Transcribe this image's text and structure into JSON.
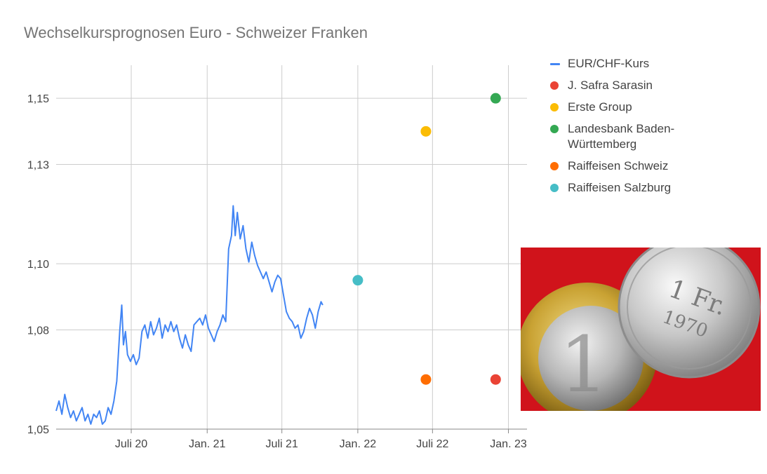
{
  "chart_data": {
    "type": "line",
    "title": "Wechselkursprognosen Euro - Schweizer Franken",
    "xlabel": "",
    "ylabel": "",
    "xlim": [
      "2020-01-01",
      "2023-02-15"
    ],
    "ylim": [
      1.05,
      1.16
    ],
    "x_ticks": [
      {
        "date": "2020-07-01",
        "label": "Juli 20"
      },
      {
        "date": "2021-01-01",
        "label": "Jan. 21"
      },
      {
        "date": "2021-07-01",
        "label": "Juli 21"
      },
      {
        "date": "2022-01-01",
        "label": "Jan. 22"
      },
      {
        "date": "2022-07-01",
        "label": "Juli 22"
      },
      {
        "date": "2023-01-01",
        "label": "Jan. 23"
      }
    ],
    "y_ticks": [
      {
        "value": 1.05,
        "label": "1,05"
      },
      {
        "value": 1.08,
        "label": "1,08"
      },
      {
        "value": 1.1,
        "label": "1,10"
      },
      {
        "value": 1.13,
        "label": "1,13"
      },
      {
        "value": 1.15,
        "label": "1,15"
      }
    ],
    "grid": true,
    "legend_position": "right",
    "series": [
      {
        "name": "EUR/CHF-Kurs",
        "type": "line",
        "color": "#4285f4",
        "points": [
          [
            "2020-01-01",
            1.0555
          ],
          [
            "2020-01-08",
            1.0585
          ],
          [
            "2020-01-15",
            1.0545
          ],
          [
            "2020-01-22",
            1.0605
          ],
          [
            "2020-01-29",
            1.0565
          ],
          [
            "2020-02-05",
            1.0535
          ],
          [
            "2020-02-12",
            1.0555
          ],
          [
            "2020-02-19",
            1.0525
          ],
          [
            "2020-02-26",
            1.0545
          ],
          [
            "2020-03-04",
            1.0565
          ],
          [
            "2020-03-11",
            1.0525
          ],
          [
            "2020-03-18",
            1.0545
          ],
          [
            "2020-03-25",
            1.0515
          ],
          [
            "2020-04-01",
            1.0545
          ],
          [
            "2020-04-08",
            1.0535
          ],
          [
            "2020-04-15",
            1.0555
          ],
          [
            "2020-04-22",
            1.0515
          ],
          [
            "2020-04-29",
            1.0525
          ],
          [
            "2020-05-06",
            1.0565
          ],
          [
            "2020-05-13",
            1.0545
          ],
          [
            "2020-05-20",
            1.0585
          ],
          [
            "2020-05-27",
            1.0645
          ],
          [
            "2020-06-03",
            1.0795
          ],
          [
            "2020-06-08",
            1.0875
          ],
          [
            "2020-06-12",
            1.0755
          ],
          [
            "2020-06-17",
            1.0795
          ],
          [
            "2020-06-22",
            1.0725
          ],
          [
            "2020-06-29",
            1.0705
          ],
          [
            "2020-07-06",
            1.0725
          ],
          [
            "2020-07-13",
            1.0695
          ],
          [
            "2020-07-20",
            1.0715
          ],
          [
            "2020-07-27",
            1.0795
          ],
          [
            "2020-08-03",
            1.0815
          ],
          [
            "2020-08-10",
            1.0775
          ],
          [
            "2020-08-17",
            1.0825
          ],
          [
            "2020-08-24",
            1.0785
          ],
          [
            "2020-08-31",
            1.0805
          ],
          [
            "2020-09-07",
            1.0835
          ],
          [
            "2020-09-14",
            1.0775
          ],
          [
            "2020-09-21",
            1.0815
          ],
          [
            "2020-09-28",
            1.0795
          ],
          [
            "2020-10-05",
            1.0825
          ],
          [
            "2020-10-12",
            1.0795
          ],
          [
            "2020-10-19",
            1.0815
          ],
          [
            "2020-10-26",
            1.0775
          ],
          [
            "2020-11-02",
            1.0745
          ],
          [
            "2020-11-09",
            1.0785
          ],
          [
            "2020-11-16",
            1.0755
          ],
          [
            "2020-11-23",
            1.0735
          ],
          [
            "2020-11-30",
            1.0815
          ],
          [
            "2020-12-07",
            1.0825
          ],
          [
            "2020-12-14",
            1.0835
          ],
          [
            "2020-12-21",
            1.0815
          ],
          [
            "2020-12-28",
            1.0845
          ],
          [
            "2021-01-04",
            1.0805
          ],
          [
            "2021-01-11",
            1.0785
          ],
          [
            "2021-01-18",
            1.0765
          ],
          [
            "2021-01-25",
            1.0795
          ],
          [
            "2021-02-01",
            1.0815
          ],
          [
            "2021-02-08",
            1.0845
          ],
          [
            "2021-02-15",
            1.0825
          ],
          [
            "2021-02-22",
            1.1045
          ],
          [
            "2021-03-01",
            1.1085
          ],
          [
            "2021-03-05",
            1.1175
          ],
          [
            "2021-03-10",
            1.1085
          ],
          [
            "2021-03-15",
            1.1155
          ],
          [
            "2021-03-22",
            1.1075
          ],
          [
            "2021-03-29",
            1.1115
          ],
          [
            "2021-04-05",
            1.1045
          ],
          [
            "2021-04-12",
            1.1005
          ],
          [
            "2021-04-19",
            1.1065
          ],
          [
            "2021-04-26",
            1.1025
          ],
          [
            "2021-05-03",
            1.0995
          ],
          [
            "2021-05-10",
            1.0975
          ],
          [
            "2021-05-17",
            1.0955
          ],
          [
            "2021-05-24",
            1.0975
          ],
          [
            "2021-05-31",
            1.0945
          ],
          [
            "2021-06-07",
            1.0915
          ],
          [
            "2021-06-14",
            1.0945
          ],
          [
            "2021-06-21",
            1.0965
          ],
          [
            "2021-06-28",
            1.0955
          ],
          [
            "2021-07-05",
            1.0905
          ],
          [
            "2021-07-12",
            1.0855
          ],
          [
            "2021-07-19",
            1.0835
          ],
          [
            "2021-07-26",
            1.0825
          ],
          [
            "2021-08-02",
            1.0805
          ],
          [
            "2021-08-09",
            1.0815
          ],
          [
            "2021-08-16",
            1.0775
          ],
          [
            "2021-08-23",
            1.0795
          ],
          [
            "2021-08-30",
            1.0835
          ],
          [
            "2021-09-06",
            1.0865
          ],
          [
            "2021-09-13",
            1.0845
          ],
          [
            "2021-09-20",
            1.0805
          ],
          [
            "2021-09-27",
            1.0855
          ],
          [
            "2021-10-04",
            1.0885
          ],
          [
            "2021-10-08",
            1.0875
          ]
        ]
      },
      {
        "name": "J. Safra Sarasin",
        "type": "scatter",
        "color": "#ea4335",
        "points": [
          [
            "2022-12-01",
            1.065
          ]
        ]
      },
      {
        "name": "Erste Group",
        "type": "scatter",
        "color": "#fbbc04",
        "points": [
          [
            "2022-06-15",
            1.14
          ]
        ]
      },
      {
        "name": "Landesbank Baden-Württemberg",
        "type": "scatter",
        "color": "#34a853",
        "points": [
          [
            "2022-12-01",
            1.15
          ]
        ]
      },
      {
        "name": "Raiffeisen Schweiz",
        "type": "scatter",
        "color": "#ff6d01",
        "points": [
          [
            "2022-06-15",
            1.065
          ]
        ]
      },
      {
        "name": "Raiffeisen Salzburg",
        "type": "scatter",
        "color": "#46bdc6",
        "points": [
          [
            "2022-01-01",
            1.095
          ]
        ]
      }
    ]
  },
  "legend": {
    "items": [
      {
        "label": "EUR/CHF-Kurs",
        "color": "#4285f4",
        "marker": "line"
      },
      {
        "label": "J. Safra Sarasin",
        "color": "#ea4335",
        "marker": "dot"
      },
      {
        "label": "Erste Group",
        "color": "#fbbc04",
        "marker": "dot"
      },
      {
        "label": "Landesbank Baden-Württemberg",
        "color": "#34a853",
        "marker": "dot"
      },
      {
        "label": "Raiffeisen Schweiz",
        "color": "#ff6d01",
        "marker": "dot"
      },
      {
        "label": "Raiffeisen Salzburg",
        "color": "#46bdc6",
        "marker": "dot"
      }
    ]
  },
  "photo": {
    "subject": "euro-and-swiss-franc-coins",
    "background_color": "#d0131b"
  }
}
